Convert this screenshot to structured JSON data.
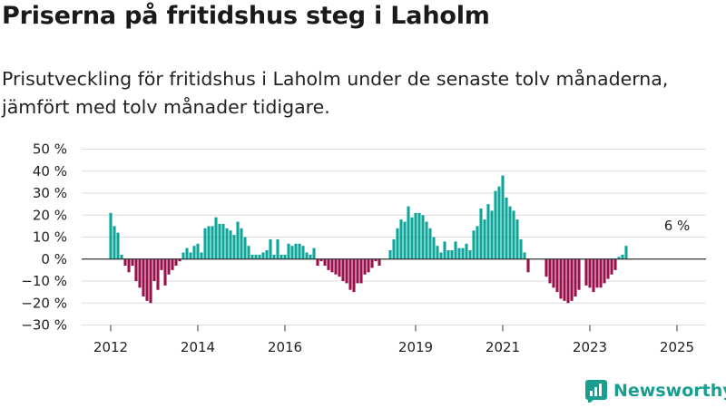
{
  "header": {
    "title": "Priserna på fritidshus steg i Laholm",
    "subtitle": "Prisutveckling för fritidshus i Laholm under de senaste tolv månaderna, jämfört med tolv månader tidigare."
  },
  "brand": {
    "name": "Newsworthy",
    "color": "#1a9e90"
  },
  "colors": {
    "positive": "#0da59a",
    "negative": "#99104c",
    "zero_line": "#333333",
    "grid": "#dddddd"
  },
  "chart_data": {
    "type": "bar",
    "ylim": [
      -30,
      50
    ],
    "yticks": [
      50,
      40,
      30,
      20,
      10,
      0,
      -10,
      -20,
      -30
    ],
    "ytick_labels": [
      "50 %",
      "40 %",
      "30 %",
      "20 %",
      "10 %",
      "0 %",
      "−10 %",
      "−20 %",
      "−30 %"
    ],
    "xticks": [
      {
        "date": "2012-01",
        "label": "2012"
      },
      {
        "date": "2014-01",
        "label": "2014"
      },
      {
        "date": "2016-01",
        "label": "2016"
      },
      {
        "date": "2019-01",
        "label": "2019"
      },
      {
        "date": "2021-01",
        "label": "2021"
      },
      {
        "date": "2023-01",
        "label": "2023"
      },
      {
        "date": "2025-01",
        "label": "2025"
      }
    ],
    "series": [
      {
        "start": "2012-01",
        "values": [
          21,
          15,
          12,
          2,
          -3,
          -6,
          -3,
          -10,
          -13,
          -17,
          -19,
          -20,
          -10,
          -14,
          -5,
          -12,
          -7,
          -5,
          -3,
          -1,
          3,
          5,
          3,
          6,
          7,
          3,
          14,
          15,
          15,
          19,
          16,
          16,
          14,
          13,
          11,
          17,
          14,
          10,
          6,
          2,
          2,
          2,
          3,
          4,
          9,
          2,
          9,
          2,
          2,
          7,
          6,
          7,
          7,
          6,
          3,
          2,
          5,
          -3,
          -1,
          -3,
          -5,
          -6,
          -7,
          -8,
          -10,
          -11,
          -14,
          -15,
          -11,
          -11,
          -7,
          -6,
          -4,
          -1,
          -3,
          4,
          9,
          14,
          18,
          17,
          24,
          19,
          21,
          21,
          20,
          17,
          14,
          10,
          6,
          3,
          8,
          4,
          4,
          8,
          5,
          5,
          7,
          4,
          13,
          15,
          23,
          18,
          25,
          22,
          31,
          33,
          38,
          28,
          24,
          22,
          18,
          9,
          3,
          -6,
          -8,
          -11,
          -13,
          -15,
          -18,
          -19,
          -20,
          -19,
          -17,
          -14,
          -12,
          -13,
          -15,
          -13,
          -13,
          -11,
          -9,
          -7,
          -5,
          1,
          2,
          6
        ],
        "gaps": [
          {
            "from": "2018-04",
            "to": "2018-05"
          },
          {
            "from": "2021-09",
            "to": "2021-12"
          },
          {
            "from": "2022-11",
            "to": "2022-11"
          },
          {
            "from": "2024-10",
            "to": "2024-12"
          }
        ]
      }
    ],
    "annotations": [
      {
        "date": "2025-01",
        "text": "6 %"
      }
    ]
  }
}
